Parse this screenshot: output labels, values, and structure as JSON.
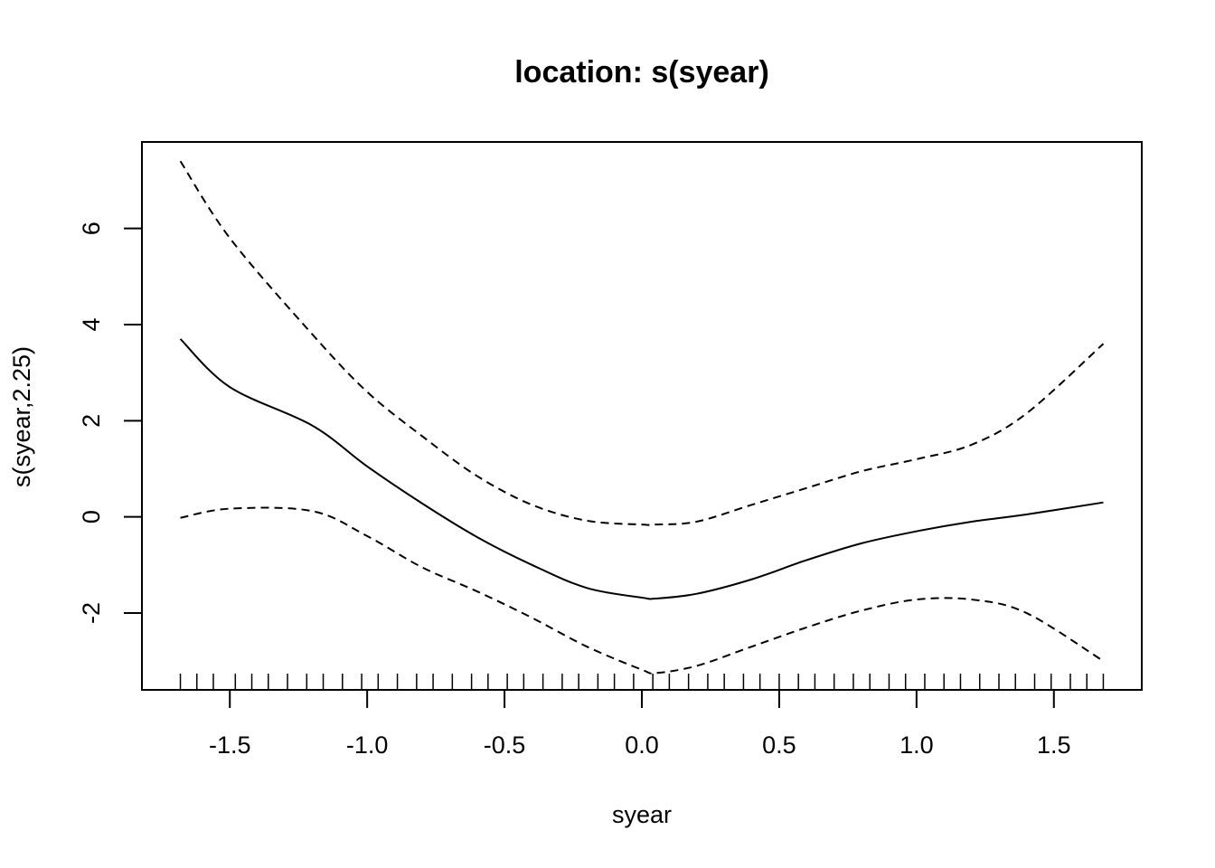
{
  "chart_data": {
    "type": "line",
    "title": "location: s(syear)",
    "xlabel": "syear",
    "ylabel": "s(syear,2.25)",
    "xlim": [
      -1.82,
      1.82
    ],
    "ylim": [
      -3.6,
      7.8
    ],
    "x_ticks": [
      -1.5,
      -1.0,
      -0.5,
      0.0,
      0.5,
      1.0,
      1.5
    ],
    "x_tick_labels": [
      "-1.5",
      "-1.0",
      "-0.5",
      "0.0",
      "0.5",
      "1.0",
      "1.5"
    ],
    "y_ticks": [
      -2,
      0,
      2,
      4,
      6
    ],
    "y_tick_labels": [
      "-2",
      "0",
      "2",
      "4",
      "6"
    ],
    "grid": false,
    "legend": "none",
    "colors": {
      "line": "#000000",
      "frame": "#000000",
      "background": "#ffffff"
    },
    "x": [
      -1.68,
      -1.5,
      -1.2,
      -1.0,
      -0.8,
      -0.6,
      -0.4,
      -0.2,
      0.0,
      0.05,
      0.2,
      0.4,
      0.6,
      0.8,
      1.0,
      1.2,
      1.4,
      1.68
    ],
    "series": [
      {
        "style": "solid",
        "values": [
          3.7,
          2.7,
          1.9,
          1.05,
          0.28,
          -0.42,
          -1.0,
          -1.48,
          -1.68,
          -1.7,
          -1.6,
          -1.3,
          -0.9,
          -0.55,
          -0.3,
          -0.1,
          0.05,
          0.3
        ]
      },
      {
        "style": "dashed",
        "values": [
          7.4,
          5.8,
          3.8,
          2.6,
          1.68,
          0.85,
          0.25,
          -0.08,
          -0.16,
          -0.16,
          -0.1,
          0.25,
          0.6,
          0.95,
          1.2,
          1.5,
          2.15,
          3.6
        ]
      },
      {
        "style": "dashed",
        "values": [
          -0.02,
          0.17,
          0.12,
          -0.4,
          -1.05,
          -1.55,
          -2.1,
          -2.7,
          -3.18,
          -3.25,
          -3.1,
          -2.7,
          -2.3,
          -1.95,
          -1.72,
          -1.72,
          -2.0,
          -3.0
        ]
      }
    ],
    "rug": [
      -1.68,
      -1.62,
      -1.56,
      -1.48,
      -1.42,
      -1.36,
      -1.29,
      -1.22,
      -1.16,
      -1.09,
      -1.02,
      -0.96,
      -0.89,
      -0.82,
      -0.76,
      -0.69,
      -0.62,
      -0.56,
      -0.49,
      -0.43,
      -0.36,
      -0.29,
      -0.23,
      -0.16,
      -0.1,
      -0.03,
      0.04,
      0.1,
      0.17,
      0.24,
      0.3,
      0.37,
      0.43,
      0.5,
      0.57,
      0.63,
      0.7,
      0.77,
      0.83,
      0.9,
      0.96,
      1.03,
      1.1,
      1.16,
      1.23,
      1.3,
      1.36,
      1.43,
      1.49,
      1.56,
      1.62,
      1.68
    ]
  }
}
